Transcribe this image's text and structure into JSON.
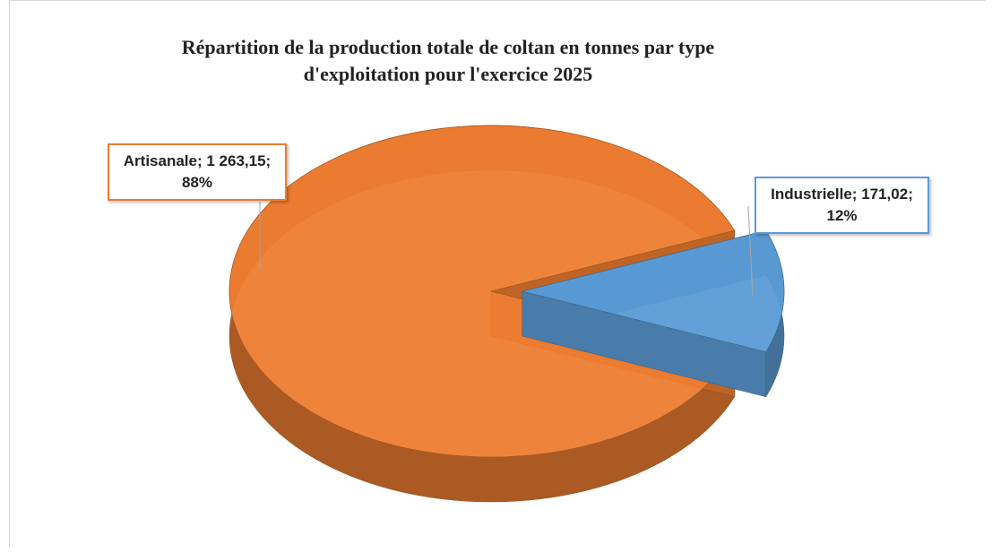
{
  "chart_data": {
    "type": "pie3d",
    "title": "Répartition de la production totale de coltan en tonnes par type d'exploitation pour l'exercice 2025",
    "categories": [
      "Artisanale",
      "Industrielle"
    ],
    "values": [
      1263.15,
      171.02
    ],
    "value_labels": [
      "Artisanale; 1 263,15; 88%",
      "Industrielle; 171,02; 12%"
    ],
    "colors": [
      "#ed7d31",
      "#5b9bd5"
    ]
  }
}
